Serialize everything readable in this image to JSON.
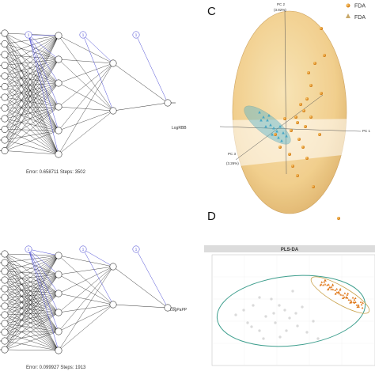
{
  "panel_a": {
    "output_label": "LogRBB",
    "error_steps": "Error: 0.658711   Steps: 3502",
    "bias_label": "1"
  },
  "panel_b": {
    "output_label": "LogPaPP",
    "error_steps": "Error: 0.099927   Steps: 1913",
    "bias_label": "1"
  },
  "panel_c": {
    "letter": "C",
    "pc2_label": "PC 2",
    "pc2_pct": "(3.82%)",
    "pc3_label": "PC 3",
    "pc3_pct": "(3.26%)",
    "pc1_label": "PC 1",
    "legend": [
      "FDA",
      "FDA"
    ],
    "colors": {
      "group1": "#e8911a",
      "group2": "#48a7c4",
      "ellipse": "#f3d08a"
    }
  },
  "panel_d": {
    "letter": "D",
    "title": "PLS-DA",
    "colors": {
      "orange": "#e07a1c",
      "gray": "#9a9a9a",
      "teal_ellipse": "#3d9e8d",
      "tan_ellipse": "#c9a14a"
    }
  }
}
